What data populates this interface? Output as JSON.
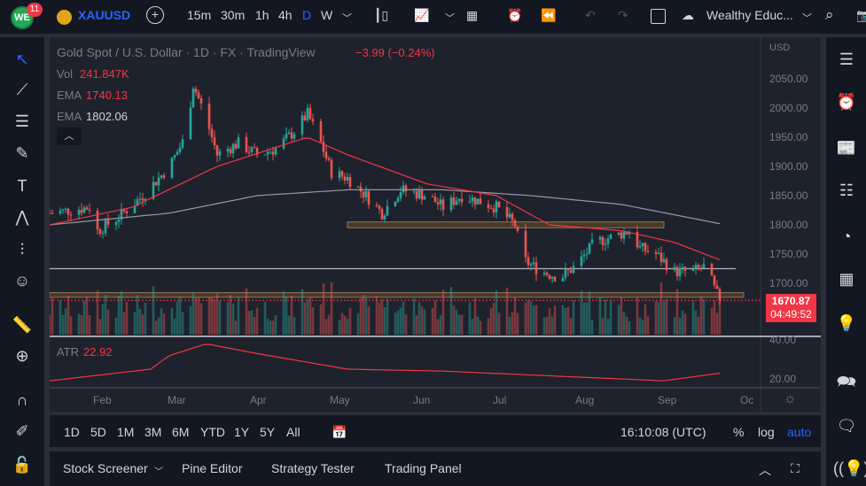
{
  "topbar": {
    "notif_count": "11",
    "symbol": "XAUUSD",
    "intervals": [
      "15m",
      "30m",
      "1h",
      "4h",
      "D",
      "W"
    ],
    "active_interval": "D",
    "layout_name": "Wealthy Educ..."
  },
  "legend": {
    "title": "Gold Spot / U.S. Dollar · 1D · FX · TradingView",
    "change": "−3.99 (−0.24%)",
    "vol_label": "Vol",
    "vol_value": "241.847K",
    "ema1_label": "EMA",
    "ema1_value": "1740.13",
    "ema2_label": "EMA",
    "ema2_value": "1802.06",
    "atr_label": "ATR",
    "atr_value": "22.92"
  },
  "price_axis": {
    "currency": "USD",
    "ticks": [
      "2050.00",
      "2000.00",
      "1950.00",
      "1900.00",
      "1850.00",
      "1800.00",
      "1750.00",
      "1700.00"
    ],
    "last_price": "1670.87",
    "countdown": "04:49:52",
    "atr_ticks": [
      "40.00",
      "20.00"
    ]
  },
  "time_axis": [
    "Feb",
    "Mar",
    "Apr",
    "May",
    "Jun",
    "Jul",
    "Aug",
    "Sep",
    "Oc"
  ],
  "range_bar": {
    "ranges": [
      "1D",
      "5D",
      "1M",
      "3M",
      "6M",
      "YTD",
      "1Y",
      "5Y",
      "All"
    ],
    "clock": "16:10:08 (UTC)",
    "percent": "%",
    "log": "log",
    "auto": "auto"
  },
  "bottom_tabs": [
    "Stock Screener",
    "Pine Editor",
    "Strategy Tester",
    "Trading Panel"
  ],
  "colors": {
    "up": "#26a69a",
    "down": "#ef5350",
    "ema_fast": "#f23645",
    "ema_slow": "#9598a1",
    "accent": "#2962ff",
    "last_price_bg": "#f23645"
  },
  "chart_data": {
    "type": "candlestick",
    "price_path": [
      [
        "2022-01-13",
        1820
      ],
      [
        "2022-01-28",
        1830
      ],
      [
        "2022-01-31",
        1790
      ],
      [
        "2022-02-07",
        1810
      ],
      [
        "2022-02-17",
        1850
      ],
      [
        "2022-02-27",
        1900
      ],
      [
        "2022-03-05",
        1950
      ],
      [
        "2022-03-08",
        2040
      ],
      [
        "2022-03-13",
        1980
      ],
      [
        "2022-03-17",
        1920
      ],
      [
        "2022-03-25",
        1940
      ],
      [
        "2022-04-01",
        1920
      ],
      [
        "2022-04-08",
        1930
      ],
      [
        "2022-04-15",
        1960
      ],
      [
        "2022-04-20",
        1990
      ],
      [
        "2022-04-25",
        1940
      ],
      [
        "2022-04-29",
        1890
      ],
      [
        "2022-05-05",
        1880
      ],
      [
        "2022-05-12",
        1850
      ],
      [
        "2022-05-18",
        1820
      ],
      [
        "2022-05-25",
        1860
      ],
      [
        "2022-06-04",
        1850
      ],
      [
        "2022-06-10",
        1830
      ],
      [
        "2022-06-17",
        1850
      ],
      [
        "2022-06-24",
        1840
      ],
      [
        "2022-06-30",
        1830
      ],
      [
        "2022-07-07",
        1800
      ],
      [
        "2022-07-10",
        1740
      ],
      [
        "2022-07-17",
        1720
      ],
      [
        "2022-07-24",
        1710
      ],
      [
        "2022-07-30",
        1730
      ],
      [
        "2022-08-06",
        1770
      ],
      [
        "2022-08-13",
        1780
      ],
      [
        "2022-08-19",
        1790
      ],
      [
        "2022-08-23",
        1760
      ],
      [
        "2022-08-29",
        1750
      ],
      [
        "2022-09-05",
        1720
      ],
      [
        "2022-09-12",
        1720
      ],
      [
        "2022-09-17",
        1730
      ],
      [
        "2022-09-20",
        1690
      ],
      [
        "2022-09-22",
        1670.87
      ]
    ],
    "ema_fast": [
      [
        "2022-01-13",
        1800
      ],
      [
        "2022-02-13",
        1830
      ],
      [
        "2022-03-17",
        1900
      ],
      [
        "2022-04-20",
        1950
      ],
      [
        "2022-05-05",
        1920
      ],
      [
        "2022-06-04",
        1870
      ],
      [
        "2022-06-30",
        1850
      ],
      [
        "2022-07-20",
        1800
      ],
      [
        "2022-08-16",
        1790
      ],
      [
        "2022-09-05",
        1770
      ],
      [
        "2022-09-22",
        1740.13
      ]
    ],
    "ema_slow": [
      [
        "2022-01-13",
        1800
      ],
      [
        "2022-02-27",
        1820
      ],
      [
        "2022-04-01",
        1850
      ],
      [
        "2022-05-05",
        1860
      ],
      [
        "2022-06-10",
        1860
      ],
      [
        "2022-07-13",
        1850
      ],
      [
        "2022-08-16",
        1835
      ],
      [
        "2022-09-22",
        1802.06
      ]
    ],
    "atr": [
      [
        "2022-01-13",
        19
      ],
      [
        "2022-02-20",
        25
      ],
      [
        "2022-02-27",
        32
      ],
      [
        "2022-03-13",
        38
      ],
      [
        "2022-04-01",
        33
      ],
      [
        "2022-05-05",
        25
      ],
      [
        "2022-06-10",
        24
      ],
      [
        "2022-07-13",
        22
      ],
      [
        "2022-09-01",
        19
      ],
      [
        "2022-09-22",
        22.92
      ]
    ],
    "levels": [
      {
        "type": "zone",
        "low": 1795,
        "high": 1805,
        "from": "2022-05-05",
        "to": "2022-09-01"
      },
      {
        "type": "line",
        "price": 1725,
        "from": "2022-01-13",
        "to": "2022-09-28"
      },
      {
        "type": "zone",
        "low": 1676,
        "high": 1684,
        "from": "2022-01-13",
        "to": "2022-10-01"
      }
    ],
    "ylim": [
      1620,
      2100
    ],
    "atr_ylim": [
      15,
      42
    ]
  }
}
